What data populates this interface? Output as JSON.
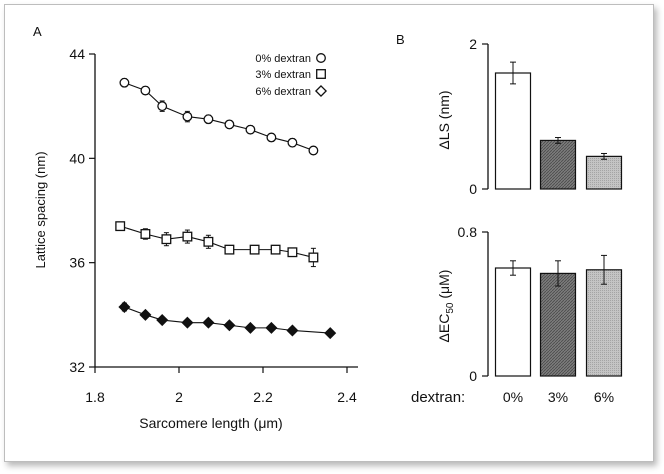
{
  "panel_labels": {
    "a": "A",
    "b": "B"
  },
  "chart_data": [
    {
      "type": "scatter",
      "panel": "A",
      "xlabel": "Sarcomere length (μm)",
      "ylabel": "Lattice spacing (nm)",
      "xlim": [
        1.8,
        2.4
      ],
      "ylim": [
        32,
        44
      ],
      "xticks": [
        1.8,
        2,
        2.2,
        2.4
      ],
      "xtick_labels": [
        "1.8",
        "2",
        "2.2",
        "2.4"
      ],
      "yticks": [
        32,
        36,
        40,
        44
      ],
      "ytick_labels": [
        "32",
        "36",
        "40",
        "44"
      ],
      "grid": false,
      "legend_position": "top-right",
      "series": [
        {
          "name": "0% dextran",
          "marker": "circle",
          "fill": "#ffffff",
          "fit": "line",
          "x": [
            1.87,
            1.92,
            1.96,
            2.02,
            2.07,
            2.12,
            2.17,
            2.22,
            2.27,
            2.32
          ],
          "y": [
            42.9,
            42.6,
            42.0,
            41.6,
            41.5,
            41.3,
            41.1,
            40.8,
            40.6,
            40.3
          ],
          "err": [
            0.15,
            0.15,
            0.2,
            0.2,
            0.15,
            0.15,
            0.15,
            0.15,
            0.15,
            0.15
          ]
        },
        {
          "name": "3% dextran",
          "marker": "square",
          "fill": "#ffffff",
          "fit": "line",
          "x": [
            1.86,
            1.92,
            1.97,
            2.02,
            2.07,
            2.12,
            2.18,
            2.23,
            2.27,
            2.32
          ],
          "y": [
            37.4,
            37.1,
            36.9,
            37.0,
            36.8,
            36.5,
            36.5,
            36.5,
            36.4,
            36.2
          ],
          "err": [
            0.15,
            0.2,
            0.25,
            0.25,
            0.25,
            0.15,
            0.15,
            0.15,
            0.15,
            0.35
          ]
        },
        {
          "name": "6% dextran",
          "marker": "diamond",
          "fill": "#111111",
          "fit": "line",
          "x": [
            1.87,
            1.92,
            1.96,
            2.02,
            2.07,
            2.12,
            2.17,
            2.22,
            2.27,
            2.36
          ],
          "y": [
            34.3,
            34.0,
            33.8,
            33.7,
            33.7,
            33.6,
            33.5,
            33.5,
            33.4,
            33.3
          ],
          "err": [
            0.15,
            0.1,
            0.1,
            0.1,
            0.1,
            0.1,
            0.1,
            0.1,
            0.1,
            0.1
          ]
        }
      ]
    },
    {
      "type": "bar",
      "panel": "B-top",
      "ylabel": "ΔLS (nm)",
      "ylim": [
        0,
        2
      ],
      "yticks": [
        0,
        2
      ],
      "ytick_labels": [
        "0",
        "2"
      ],
      "categories": [
        "0%",
        "3%",
        "6%"
      ],
      "values": [
        1.6,
        0.67,
        0.45
      ],
      "errors": [
        0.15,
        0.04,
        0.04
      ],
      "bar_fills": [
        "#ffffff",
        "#8a8a8a",
        "#bcbcbc"
      ]
    },
    {
      "type": "bar",
      "panel": "B-bottom",
      "ylabel": "ΔEC50 (μM)",
      "ylim": [
        0,
        0.8
      ],
      "yticks": [
        0,
        0.8
      ],
      "ytick_labels": [
        "0",
        "0.8"
      ],
      "categories": [
        "0%",
        "3%",
        "6%"
      ],
      "category_axis_label": "dextran:",
      "values": [
        0.6,
        0.57,
        0.59
      ],
      "errors": [
        0.04,
        0.07,
        0.08
      ],
      "bar_fills": [
        "#ffffff",
        "#8a8a8a",
        "#bcbcbc"
      ]
    }
  ]
}
